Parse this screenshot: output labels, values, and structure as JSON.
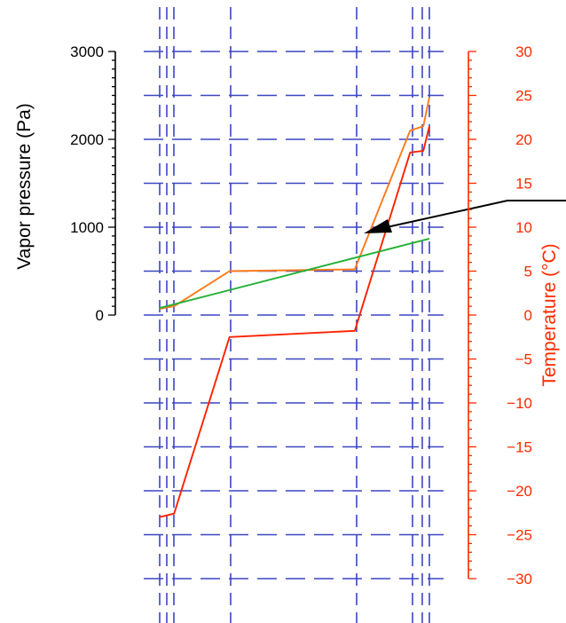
{
  "chart_data": {
    "type": "line",
    "title": "",
    "left_axis": {
      "label": "Vapor pressure (Pa)",
      "range": [
        0,
        3000
      ],
      "ticks": [
        0,
        1000,
        2000,
        3000
      ],
      "tick_labels": [
        "0",
        "1000",
        "2000",
        "3000"
      ],
      "color": "#000000"
    },
    "right_axis": {
      "label": "Temperature (°C)",
      "range": [
        -30,
        30
      ],
      "ticks": [
        30,
        25,
        20,
        15,
        10,
        5,
        0,
        -5,
        -10,
        -15,
        -20,
        -25,
        -30
      ],
      "tick_labels": [
        "30",
        "25",
        "20",
        "15",
        "10",
        "5",
        "0",
        "−5",
        "−10",
        "−15",
        "−20",
        "−25",
        "−30"
      ],
      "color": "#ff2a00"
    },
    "grid": true,
    "grid_color": "#3a46c0",
    "series": [
      {
        "axis": "right",
        "color": "#ff2200",
        "points": [
          [
            0,
            -23
          ],
          [
            1.2,
            -22.6
          ],
          [
            5.8,
            -2.5
          ],
          [
            16.2,
            -1.8
          ],
          [
            20.8,
            18.5
          ],
          [
            21.9,
            18.7
          ],
          [
            22.4,
            21.5
          ]
        ]
      },
      {
        "axis": "left",
        "color": "#ff7a1a",
        "points": [
          [
            0,
            70
          ],
          [
            1.2,
            100
          ],
          [
            5.8,
            500
          ],
          [
            16.2,
            520
          ],
          [
            20.8,
            2100
          ],
          [
            21.9,
            2150
          ],
          [
            22.4,
            2480
          ]
        ]
      },
      {
        "axis": "left",
        "color": "#22b035",
        "points": [
          [
            0,
            80
          ],
          [
            22.4,
            870
          ]
        ]
      }
    ],
    "colors": {
      "left_axis": "#000000",
      "right_axis": "#ff2a00",
      "pointer_line": "#000000"
    }
  }
}
